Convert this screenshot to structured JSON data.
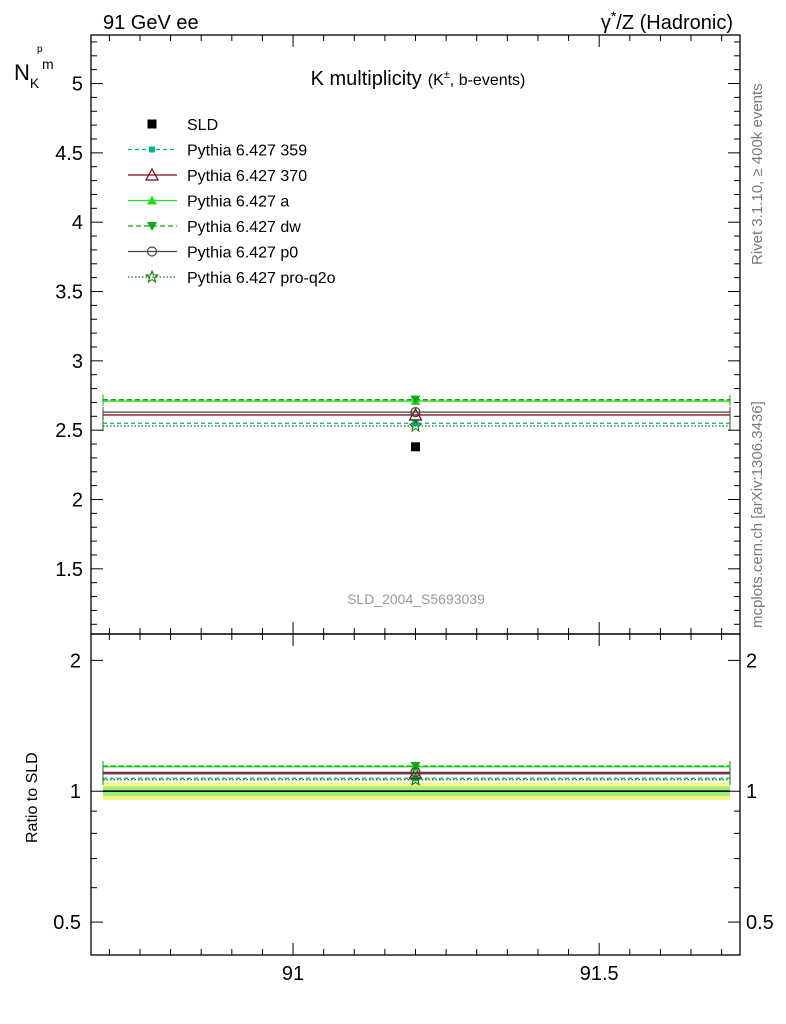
{
  "header": {
    "left": "91 GeV ee",
    "right_prefix": "γ",
    "right_sup": "*",
    "right_suffix": "/Z (Hadronic)"
  },
  "side_labels": {
    "rivet": "Rivet 3.1.10, ≥ 400k events",
    "mcplots": "mcplots.cern.ch [arXiv:1306.3436]"
  },
  "chart_data": [
    {
      "type": "scatter",
      "title_main": "K multiplicity",
      "title_sub_pre": "(K",
      "title_sub_sup": "±",
      "title_sub_post": ", b-events)",
      "ylabel_main": "N",
      "ylabel_sub": "K",
      "ylabel_sup_a": "p",
      "ylabel_sup_b": "m",
      "watermark": "SLD_2004_S5693039",
      "xlim": [
        90.67,
        91.73
      ],
      "ylim": [
        1.03,
        5.35
      ],
      "yticks": [
        1.5,
        2,
        2.5,
        3,
        3.5,
        4,
        4.5,
        5
      ],
      "ytick_labels": [
        "1.5",
        "2",
        "2.5",
        "3",
        "3.5",
        "4",
        "4.5",
        "5"
      ],
      "grid": false,
      "legend_position": "top-left",
      "data": {
        "name": "SLD",
        "x": 91.2,
        "y": 2.38,
        "color": "#000000",
        "marker": "filled-square"
      },
      "series": [
        {
          "name": "Pythia 6.427 359",
          "x": [
            90.67,
            91.73
          ],
          "y": 2.55,
          "color": "#00b386",
          "dash": "4,3",
          "marker": "small-square"
        },
        {
          "name": "Pythia 6.427 370",
          "x": [
            90.67,
            91.73
          ],
          "y": 2.61,
          "color": "#7a1018",
          "dash": "",
          "marker": "open-triangle"
        },
        {
          "name": "Pythia 6.427 a",
          "x": [
            90.67,
            91.73
          ],
          "y": 2.71,
          "color": "#22dd22",
          "dash": "",
          "marker": "filled-triangle"
        },
        {
          "name": "Pythia 6.427 dw",
          "x": [
            90.67,
            91.73
          ],
          "y": 2.72,
          "color": "#13a813",
          "dash": "5,3",
          "marker": "filled-triangle-down"
        },
        {
          "name": "Pythia 6.427 p0",
          "x": [
            90.67,
            91.73
          ],
          "y": 2.63,
          "color": "#444444",
          "dash": "",
          "marker": "open-circle"
        },
        {
          "name": "Pythia 6.427 pro-q2o",
          "x": [
            90.67,
            91.73
          ],
          "y": 2.53,
          "color": "#0c7a0c",
          "dash": "1.5,2",
          "marker": "open-star"
        }
      ]
    },
    {
      "type": "scatter",
      "ylabel": "Ratio to SLD",
      "xlim": [
        90.67,
        91.73
      ],
      "ylim": [
        0.42,
        2.3
      ],
      "yticks": [
        0.5,
        1,
        2
      ],
      "ytick_labels": [
        "0.5",
        "1",
        "2"
      ],
      "xticks": [
        91,
        91.5
      ],
      "xtick_labels": [
        "91",
        "91.5"
      ],
      "reference_line": 1.0,
      "bands": [
        {
          "low": 0.955,
          "high": 1.045,
          "color": "#f3f57a"
        },
        {
          "low": 0.975,
          "high": 1.025,
          "color": "#9af07c"
        }
      ],
      "series": [
        {
          "name": "Pythia 6.427 359",
          "y": 1.071,
          "color": "#00b386",
          "dash": "4,3",
          "marker": "small-square"
        },
        {
          "name": "Pythia 6.427 370",
          "y": 1.097,
          "color": "#7a1018",
          "dash": "",
          "marker": "open-triangle"
        },
        {
          "name": "Pythia 6.427 a",
          "y": 1.139,
          "color": "#22dd22",
          "dash": "",
          "marker": "filled-triangle"
        },
        {
          "name": "Pythia 6.427 dw",
          "y": 1.143,
          "color": "#13a813",
          "dash": "5,3",
          "marker": "filled-triangle-down"
        },
        {
          "name": "Pythia 6.427 p0",
          "y": 1.105,
          "color": "#444444",
          "dash": "",
          "marker": "open-circle"
        },
        {
          "name": "Pythia 6.427 pro-q2o",
          "y": 1.063,
          "color": "#0c7a0c",
          "dash": "1.5,2",
          "marker": "open-star"
        }
      ]
    }
  ]
}
